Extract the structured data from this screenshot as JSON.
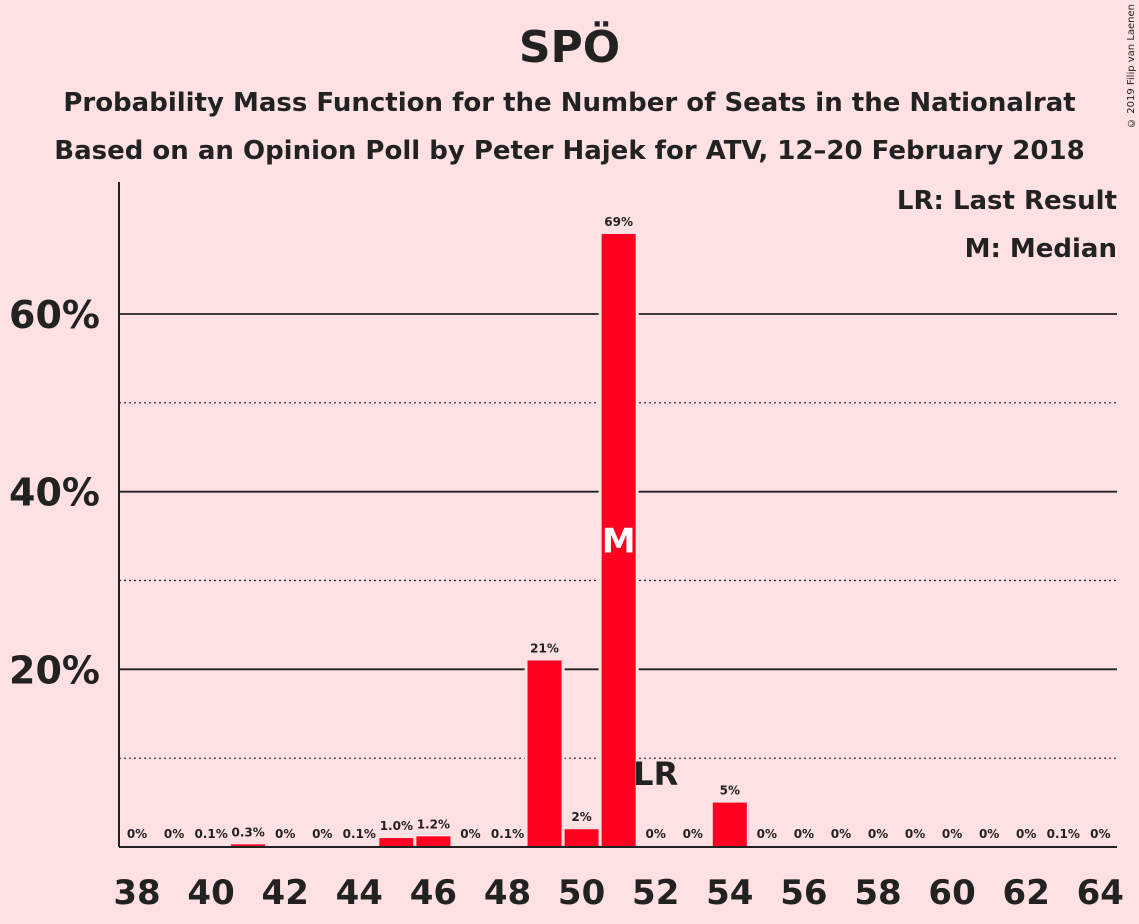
{
  "title": "SPÖ",
  "subtitle1": "Probability Mass Function for the Number of Seats in the Nationalrat",
  "subtitle2": "Based on an Opinion Poll by Peter Hajek for ATV, 12–20 February 2018",
  "copyright": "© 2019 Filip van Laenen",
  "legend": {
    "lr": "LR: Last Result",
    "m": "M: Median"
  },
  "colors": {
    "bar": "#ff0020",
    "background": "#ffe1e4"
  },
  "chart_data": {
    "type": "bar",
    "x": [
      38,
      39,
      40,
      41,
      42,
      43,
      44,
      45,
      46,
      47,
      48,
      49,
      50,
      51,
      52,
      53,
      54,
      55,
      56,
      57,
      58,
      59,
      60,
      61,
      62,
      63,
      64
    ],
    "values": [
      0,
      0,
      0.1,
      0.3,
      0,
      0,
      0.1,
      1.0,
      1.2,
      0,
      0.1,
      21,
      2,
      69,
      0,
      0,
      5,
      0,
      0,
      0,
      0,
      0,
      0,
      0,
      0,
      0.1,
      0
    ],
    "labels": [
      "0%",
      "0%",
      "0.1%",
      "0.3%",
      "0%",
      "0%",
      "0.1%",
      "1.0%",
      "1.2%",
      "0%",
      "0.1%",
      "21%",
      "2%",
      "69%",
      "0%",
      "0%",
      "5%",
      "0%",
      "0%",
      "0%",
      "0%",
      "0%",
      "0%",
      "0%",
      "0%",
      "0.1%",
      "0%"
    ],
    "xticks": [
      38,
      40,
      42,
      44,
      46,
      48,
      50,
      52,
      54,
      56,
      58,
      60,
      62,
      64
    ],
    "yticks": [
      20,
      40,
      60
    ],
    "yticklabels": [
      "20%",
      "40%",
      "60%"
    ],
    "dotted_grid": [
      10,
      30,
      50
    ],
    "ylim": [
      0,
      75
    ],
    "median": 51,
    "median_label": "M",
    "last_result": 52,
    "last_result_label": "LR",
    "grid": true,
    "legend_position": "top-right"
  }
}
